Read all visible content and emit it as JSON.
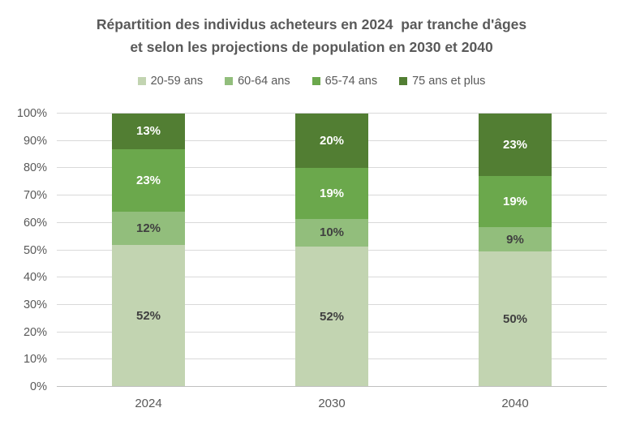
{
  "chart_data": {
    "type": "bar",
    "stacked": true,
    "title_lines": [
      "Répartition des individus acheteurs en 2024  par tranche d'âges",
      "et selon les projections de population en 2030 et 2040"
    ],
    "categories": [
      "2024",
      "2030",
      "2040"
    ],
    "series": [
      {
        "name": "20-59 ans",
        "color": "#c2d4b1",
        "label_color": "#404040",
        "values": [
          52,
          52,
          50
        ]
      },
      {
        "name": "60-64 ans",
        "color": "#92be7c",
        "label_color": "#404040",
        "values": [
          12,
          10,
          9
        ]
      },
      {
        "name": "65-74 ans",
        "color": "#6ba84c",
        "label_color": "#ffffff",
        "values": [
          23,
          19,
          19
        ]
      },
      {
        "name": "75 ans et plus",
        "color": "#527e33",
        "label_color": "#ffffff",
        "values": [
          13,
          20,
          23
        ]
      }
    ],
    "value_suffix": "%",
    "y_ticks": [
      "0%",
      "10%",
      "20%",
      "30%",
      "40%",
      "50%",
      "60%",
      "70%",
      "80%",
      "90%",
      "100%"
    ],
    "ylim": [
      0,
      100
    ],
    "grid": true,
    "legend_position": "top",
    "xlabel": "",
    "ylabel": "",
    "colors": {
      "gridline": "#d9d9d9",
      "axis_line": "#bfbfbf",
      "text": "#595959"
    }
  }
}
